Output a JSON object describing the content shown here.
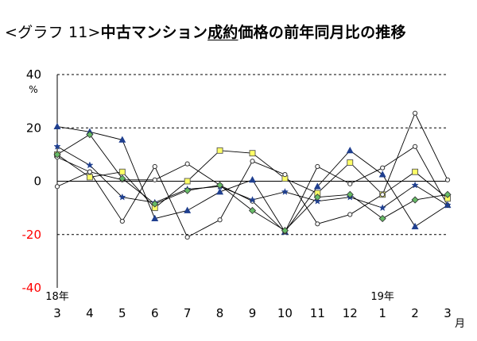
{
  "title": {
    "prefix": "<グラフ 11>",
    "part1": "中古マンション",
    "underlined": "成約",
    "part2": "価格の前年同月比の推移"
  },
  "chart_data": {
    "type": "line",
    "y_unit": "%",
    "x_unit": "月",
    "ylim": [
      -40,
      40
    ],
    "yticks": [
      -40,
      -20,
      0,
      20,
      40
    ],
    "negative_tick_color": "#ff0000",
    "dashed_gridlines": [
      40,
      20,
      -20
    ],
    "solid_gridlines": [
      0
    ],
    "categories": [
      "3",
      "4",
      "5",
      "6",
      "7",
      "8",
      "9",
      "10",
      "11",
      "12",
      "1",
      "2",
      "3"
    ],
    "year_labels": [
      {
        "label": "18年",
        "index": 0
      },
      {
        "label": "19年",
        "index": 10
      }
    ],
    "series": [
      {
        "marker": "triangle",
        "fill": "#1f3f8f",
        "stroke": "#1f3f8f",
        "values": [
          20.5,
          18.5,
          15.5,
          -14,
          -11,
          -4,
          0.5,
          -19,
          -2,
          11.5,
          2.5,
          -17,
          -9
        ]
      },
      {
        "marker": "square",
        "fill": "#ffff66",
        "stroke": "#555555",
        "values": [
          10,
          1.5,
          3.5,
          -10,
          0,
          11.5,
          10.5,
          1,
          -4.5,
          7,
          -5,
          3.5,
          -6.5
        ]
      },
      {
        "marker": "circle",
        "fill": "#ffffff",
        "stroke": "#333333",
        "values": [
          -2,
          3.5,
          -15,
          5.5,
          -21,
          -14.5,
          7.5,
          2.5,
          -16,
          -12.5,
          -5,
          25.5,
          0.5
        ]
      },
      {
        "marker": "circle",
        "fill": "#ffffff",
        "stroke": "#333333",
        "values": [
          9,
          3.5,
          0.5,
          0.5,
          6.5,
          -1.5,
          -7.5,
          -19,
          5.5,
          -1,
          5,
          13,
          -9
        ]
      },
      {
        "marker": "star",
        "fill": "#1f3f8f",
        "stroke": "#1f3f8f",
        "values": [
          13,
          6,
          -6,
          -8,
          -3,
          -2,
          -7,
          -4,
          -7.5,
          -6,
          -10,
          -1.5,
          -9
        ]
      },
      {
        "marker": "diamond",
        "fill": "#66bb66",
        "stroke": "#333333",
        "values": [
          10,
          17.5,
          1,
          -8.5,
          -3.5,
          -1.5,
          -11,
          -18.5,
          -6,
          -5,
          -14,
          -7,
          -5
        ]
      }
    ]
  }
}
